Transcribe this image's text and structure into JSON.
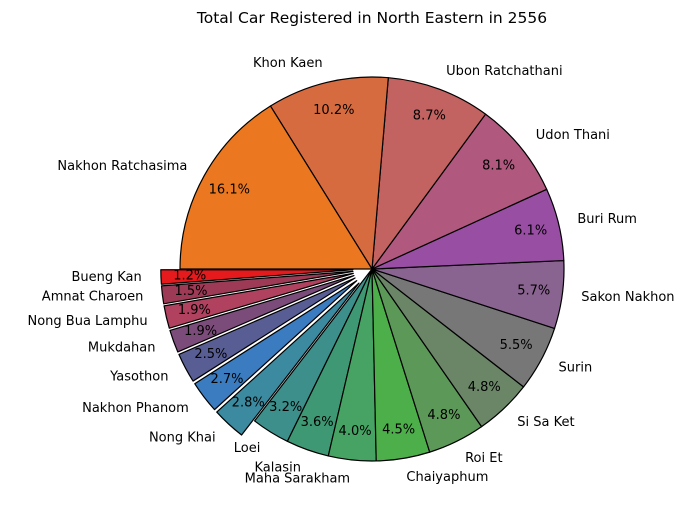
{
  "chart_data": {
    "type": "pie",
    "title": "Total Car Registered in North Eastern in 2556",
    "slices": [
      {
        "label": "Bueng Kan",
        "value": 1.2,
        "pct_label": "1.2%",
        "color": "#e41a1c",
        "explode": true
      },
      {
        "label": "Amnat Charoen",
        "value": 1.5,
        "pct_label": "1.5%",
        "color": "#9d3a56",
        "explode": true
      },
      {
        "label": "Nong Bua Lamphu",
        "value": 1.9,
        "pct_label": "1.9%",
        "color": "#b0415f",
        "explode": true
      },
      {
        "label": "Mukdahan",
        "value": 1.9,
        "pct_label": "1.9%",
        "color": "#7b4c79",
        "explode": true
      },
      {
        "label": "Yasothon",
        "value": 2.5,
        "pct_label": "2.5%",
        "color": "#585e94",
        "explode": true
      },
      {
        "label": "Nakhon Phanom",
        "value": 2.7,
        "pct_label": "2.7%",
        "color": "#3a7cbf",
        "explode": true
      },
      {
        "label": "Nong Khai",
        "value": 2.8,
        "pct_label": "2.8%",
        "color": "#3b8a9f",
        "explode": true
      },
      {
        "label": "Loei",
        "value": 3.2,
        "pct_label": "3.2%",
        "color": "#3c8f8a",
        "explode": false
      },
      {
        "label": "Kalasin",
        "value": 3.6,
        "pct_label": "3.6%",
        "color": "#3f9874",
        "explode": false
      },
      {
        "label": "Maha Sarakham",
        "value": 4.0,
        "pct_label": "4.0%",
        "color": "#47a364",
        "explode": false
      },
      {
        "label": "Chaiyaphum",
        "value": 4.5,
        "pct_label": "4.5%",
        "color": "#4daf4a",
        "explode": false
      },
      {
        "label": "Roi Et",
        "value": 4.8,
        "pct_label": "4.8%",
        "color": "#5c9858",
        "explode": false
      },
      {
        "label": "Si Sa Ket",
        "value": 4.8,
        "pct_label": "4.8%",
        "color": "#6a8667",
        "explode": false
      },
      {
        "label": "Surin",
        "value": 5.5,
        "pct_label": "5.5%",
        "color": "#777777",
        "explode": false
      },
      {
        "label": "Sakon Nakhon",
        "value": 5.7,
        "pct_label": "5.7%",
        "color": "#8a6490",
        "explode": false
      },
      {
        "label": "Buri Rum",
        "value": 6.1,
        "pct_label": "6.1%",
        "color": "#984ea3",
        "explode": false
      },
      {
        "label": "Udon Thani",
        "value": 8.1,
        "pct_label": "8.1%",
        "color": "#b0587e",
        "explode": false
      },
      {
        "label": "Ubon Ratchathani",
        "value": 8.7,
        "pct_label": "8.7%",
        "color": "#c26261",
        "explode": false
      },
      {
        "label": "Khon Kaen",
        "value": 10.2,
        "pct_label": "10.2%",
        "color": "#d76b40",
        "explode": false
      },
      {
        "label": "Nakhon Ratchasima",
        "value": 16.1,
        "pct_label": "16.1%",
        "color": "#eb7820",
        "explode": false
      }
    ]
  }
}
